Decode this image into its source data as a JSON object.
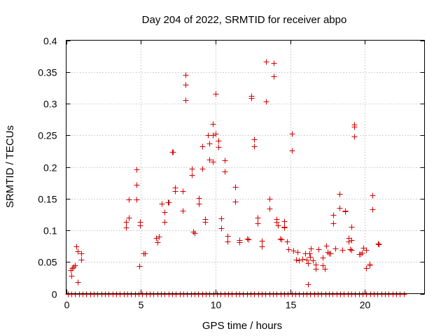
{
  "chart_data": {
    "type": "scatter",
    "title": "Day 204 of 2022, SRMTID for receiver abpo",
    "xlabel": "GPS time / hours",
    "ylabel": "SRMTID / TECUs",
    "xlim": [
      0,
      24
    ],
    "ylim": [
      0,
      0.4
    ],
    "xticks": [
      0,
      5,
      10,
      15,
      20
    ],
    "yticks": [
      0,
      0.05,
      0.1,
      0.15,
      0.2,
      0.25,
      0.3,
      0.35,
      0.4
    ],
    "xtick_labels": [
      "0",
      "5",
      "10",
      "15",
      "20"
    ],
    "ytick_labels": [
      "0",
      "0.05",
      "0.1",
      "0.15",
      "0.2",
      "0.25",
      "0.3",
      "0.35",
      "0.4"
    ],
    "grid": true,
    "marker": "+",
    "color": "#d40000",
    "zero_baseline": {
      "x_start": 0.1,
      "x_end": 22.7,
      "step": 0.25,
      "y": 0
    },
    "points": [
      [
        0.3,
        0.037
      ],
      [
        0.35,
        0.028
      ],
      [
        0.4,
        0.04
      ],
      [
        0.5,
        0.043
      ],
      [
        0.6,
        0.045
      ],
      [
        0.7,
        0.075
      ],
      [
        0.75,
        0.067
      ],
      [
        0.75,
        0.018
      ],
      [
        1.0,
        0.063
      ],
      [
        1.0,
        0.054
      ],
      [
        4.0,
        0.113
      ],
      [
        4.0,
        0.104
      ],
      [
        4.2,
        0.149
      ],
      [
        4.2,
        0.12
      ],
      [
        4.7,
        0.196
      ],
      [
        4.7,
        0.172
      ],
      [
        4.7,
        0.149
      ],
      [
        4.9,
        0.044
      ],
      [
        4.95,
        0.113
      ],
      [
        4.95,
        0.108
      ],
      [
        5.2,
        0.063
      ],
      [
        5.25,
        0.063
      ],
      [
        6.0,
        0.088
      ],
      [
        6.1,
        0.081
      ],
      [
        6.2,
        0.09
      ],
      [
        6.4,
        0.142
      ],
      [
        6.6,
        0.129
      ],
      [
        6.6,
        0.113
      ],
      [
        6.8,
        0.144
      ],
      [
        6.85,
        0.144
      ],
      [
        7.1,
        0.224
      ],
      [
        7.15,
        0.224
      ],
      [
        7.3,
        0.167
      ],
      [
        7.3,
        0.162
      ],
      [
        7.8,
        0.162
      ],
      [
        7.8,
        0.131
      ],
      [
        8.0,
        0.345
      ],
      [
        8.0,
        0.33
      ],
      [
        8.0,
        0.306
      ],
      [
        8.4,
        0.197
      ],
      [
        8.4,
        0.187
      ],
      [
        8.5,
        0.098
      ],
      [
        8.6,
        0.096
      ],
      [
        8.9,
        0.151
      ],
      [
        8.9,
        0.142
      ],
      [
        9.1,
        0.233
      ],
      [
        9.1,
        0.197
      ],
      [
        9.3,
        0.118
      ],
      [
        9.3,
        0.113
      ],
      [
        9.5,
        0.25
      ],
      [
        9.6,
        0.237
      ],
      [
        9.6,
        0.212
      ],
      [
        9.8,
        0.268
      ],
      [
        9.8,
        0.25
      ],
      [
        9.8,
        0.208
      ],
      [
        10.0,
        0.316
      ],
      [
        10.0,
        0.253
      ],
      [
        10.2,
        0.241
      ],
      [
        10.2,
        0.232
      ],
      [
        10.4,
        0.119
      ],
      [
        10.4,
        0.103
      ],
      [
        10.6,
        0.211
      ],
      [
        10.6,
        0.193
      ],
      [
        10.8,
        0.091
      ],
      [
        10.8,
        0.082
      ],
      [
        11.3,
        0.169
      ],
      [
        11.3,
        0.145
      ],
      [
        11.6,
        0.085
      ],
      [
        11.6,
        0.081
      ],
      [
        12.1,
        0.087
      ],
      [
        12.2,
        0.086
      ],
      [
        12.4,
        0.312
      ],
      [
        12.4,
        0.309
      ],
      [
        12.6,
        0.244
      ],
      [
        12.6,
        0.233
      ],
      [
        12.8,
        0.12
      ],
      [
        12.8,
        0.111
      ],
      [
        13.1,
        0.083
      ],
      [
        13.1,
        0.075
      ],
      [
        13.4,
        0.366
      ],
      [
        13.4,
        0.303
      ],
      [
        13.6,
        0.15
      ],
      [
        13.6,
        0.134
      ],
      [
        13.9,
        0.364
      ],
      [
        13.9,
        0.343
      ],
      [
        14.1,
        0.118
      ],
      [
        14.1,
        0.113
      ],
      [
        14.2,
        0.108
      ],
      [
        14.3,
        0.087
      ],
      [
        14.4,
        0.086
      ],
      [
        14.6,
        0.114
      ],
      [
        14.6,
        0.105
      ],
      [
        14.6,
        0.104
      ],
      [
        14.8,
        0.082
      ],
      [
        14.9,
        0.07
      ],
      [
        15.1,
        0.253
      ],
      [
        15.1,
        0.226
      ],
      [
        15.2,
        0.068
      ],
      [
        15.4,
        0.054
      ],
      [
        15.5,
        0.066
      ],
      [
        15.6,
        0.053
      ],
      [
        15.8,
        0.055
      ],
      [
        16.0,
        0.064
      ],
      [
        16.1,
        0.054
      ],
      [
        16.2,
        0.048
      ],
      [
        16.2,
        0.015
      ],
      [
        16.3,
        0.063
      ],
      [
        16.35,
        0.058
      ],
      [
        16.4,
        0.071
      ],
      [
        16.5,
        0.052
      ],
      [
        16.7,
        0.046
      ],
      [
        16.7,
        0.039
      ],
      [
        16.9,
        0.07
      ],
      [
        17.2,
        0.057
      ],
      [
        17.2,
        0.045
      ],
      [
        17.3,
        0.039
      ],
      [
        17.4,
        0.076
      ],
      [
        17.5,
        0.066
      ],
      [
        17.6,
        0.064
      ],
      [
        17.7,
        0.063
      ],
      [
        17.9,
        0.124
      ],
      [
        17.9,
        0.111
      ],
      [
        18.0,
        0.071
      ],
      [
        18.3,
        0.157
      ],
      [
        18.3,
        0.135
      ],
      [
        18.5,
        0.069
      ],
      [
        18.7,
        0.131
      ],
      [
        18.7,
        0.13
      ],
      [
        18.9,
        0.088
      ],
      [
        18.9,
        0.082
      ],
      [
        19.0,
        0.07
      ],
      [
        19.1,
        0.084
      ],
      [
        19.1,
        0.069
      ],
      [
        19.1,
        0.105
      ],
      [
        19.3,
        0.267
      ],
      [
        19.3,
        0.263
      ],
      [
        19.3,
        0.248
      ],
      [
        19.6,
        0.062
      ],
      [
        19.7,
        0.062
      ],
      [
        19.8,
        0.065
      ],
      [
        19.9,
        0.072
      ],
      [
        20.1,
        0.069
      ],
      [
        20.1,
        0.04
      ],
      [
        20.3,
        0.047
      ],
      [
        20.3,
        0.045
      ],
      [
        20.5,
        0.155
      ],
      [
        20.5,
        0.133
      ],
      [
        20.9,
        0.079
      ],
      [
        20.95,
        0.078
      ]
    ]
  }
}
